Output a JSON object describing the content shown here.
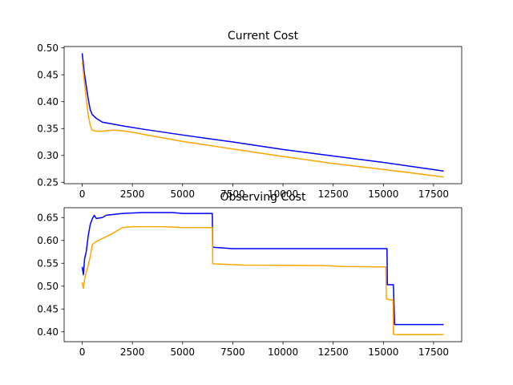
{
  "chart_data": [
    {
      "type": "line",
      "title": "Current Cost",
      "xlabel": "",
      "ylabel": "",
      "xlim": [
        -900,
        18900
      ],
      "ylim": [
        0.2475,
        0.5025
      ],
      "xticks": [
        0,
        2500,
        5000,
        7500,
        10000,
        12500,
        15000,
        17500
      ],
      "xtick_labels": [
        "0",
        "2500",
        "5000",
        "7500",
        "10000",
        "12500",
        "15000",
        "17500"
      ],
      "yticks": [
        0.25,
        0.3,
        0.35,
        0.4,
        0.45,
        0.5
      ],
      "ytick_labels": [
        "0.25",
        "0.30",
        "0.35",
        "0.40",
        "0.45",
        "0.50"
      ],
      "grid": false,
      "series": [
        {
          "color": "#0000ff",
          "points": [
            [
              0,
              0.49
            ],
            [
              100,
              0.455
            ],
            [
              200,
              0.43
            ],
            [
              300,
              0.405
            ],
            [
              400,
              0.385
            ],
            [
              500,
              0.376
            ],
            [
              700,
              0.369
            ],
            [
              1000,
              0.362
            ],
            [
              2000,
              0.355
            ],
            [
              3000,
              0.349
            ],
            [
              5000,
              0.338
            ],
            [
              7500,
              0.325
            ],
            [
              10000,
              0.311
            ],
            [
              12500,
              0.299
            ],
            [
              15000,
              0.287
            ],
            [
              18000,
              0.271
            ]
          ]
        },
        {
          "color": "#ffa500",
          "points": [
            [
              0,
              0.474
            ],
            [
              100,
              0.44
            ],
            [
              200,
              0.405
            ],
            [
              300,
              0.375
            ],
            [
              400,
              0.356
            ],
            [
              500,
              0.347
            ],
            [
              700,
              0.345
            ],
            [
              1000,
              0.345
            ],
            [
              1500,
              0.347
            ],
            [
              2000,
              0.346
            ],
            [
              2500,
              0.343
            ],
            [
              5000,
              0.326
            ],
            [
              7500,
              0.312
            ],
            [
              10000,
              0.298
            ],
            [
              12500,
              0.285
            ],
            [
              15000,
              0.274
            ],
            [
              18000,
              0.26
            ]
          ]
        }
      ]
    },
    {
      "type": "line",
      "title": "Observing Cost",
      "xlabel": "",
      "ylabel": "",
      "xlim": [
        -900,
        18900
      ],
      "ylim": [
        0.3785,
        0.6715
      ],
      "xticks": [
        0,
        2500,
        5000,
        7500,
        10000,
        12500,
        15000,
        17500
      ],
      "xtick_labels": [
        "0",
        "2500",
        "5000",
        "7500",
        "10000",
        "12500",
        "15000",
        "17500"
      ],
      "yticks": [
        0.4,
        0.45,
        0.5,
        0.55,
        0.6,
        0.65
      ],
      "ytick_labels": [
        "0.40",
        "0.45",
        "0.50",
        "0.55",
        "0.60",
        "0.65"
      ],
      "grid": false,
      "series": [
        {
          "color": "#0000ff",
          "points": [
            [
              0,
              0.542
            ],
            [
              60,
              0.525
            ],
            [
              120,
              0.56
            ],
            [
              200,
              0.575
            ],
            [
              300,
              0.61
            ],
            [
              400,
              0.635
            ],
            [
              500,
              0.647
            ],
            [
              600,
              0.655
            ],
            [
              700,
              0.648
            ],
            [
              1000,
              0.65
            ],
            [
              1200,
              0.655
            ],
            [
              1600,
              0.657
            ],
            [
              2000,
              0.659
            ],
            [
              3000,
              0.661
            ],
            [
              4500,
              0.661
            ],
            [
              5000,
              0.659
            ],
            [
              6480,
              0.659
            ],
            [
              6500,
              0.585
            ],
            [
              7500,
              0.582
            ],
            [
              9000,
              0.582
            ],
            [
              15180,
              0.582
            ],
            [
              15200,
              0.503
            ],
            [
              15500,
              0.503
            ],
            [
              15520,
              0.472
            ],
            [
              15560,
              0.416
            ],
            [
              18000,
              0.416
            ]
          ]
        },
        {
          "color": "#ffa500",
          "points": [
            [
              0,
              0.508
            ],
            [
              60,
              0.495
            ],
            [
              120,
              0.515
            ],
            [
              200,
              0.53
            ],
            [
              300,
              0.545
            ],
            [
              400,
              0.565
            ],
            [
              500,
              0.59
            ],
            [
              600,
              0.595
            ],
            [
              800,
              0.6
            ],
            [
              1000,
              0.604
            ],
            [
              1500,
              0.615
            ],
            [
              2000,
              0.628
            ],
            [
              2500,
              0.63
            ],
            [
              4000,
              0.63
            ],
            [
              5000,
              0.628
            ],
            [
              6480,
              0.628
            ],
            [
              6500,
              0.549
            ],
            [
              7000,
              0.548
            ],
            [
              8000,
              0.546
            ],
            [
              12000,
              0.545
            ],
            [
              13000,
              0.543
            ],
            [
              14800,
              0.542
            ],
            [
              15120,
              0.542
            ],
            [
              15150,
              0.472
            ],
            [
              15480,
              0.469
            ],
            [
              15500,
              0.395
            ],
            [
              15600,
              0.394
            ],
            [
              18000,
              0.394
            ]
          ]
        }
      ]
    }
  ]
}
